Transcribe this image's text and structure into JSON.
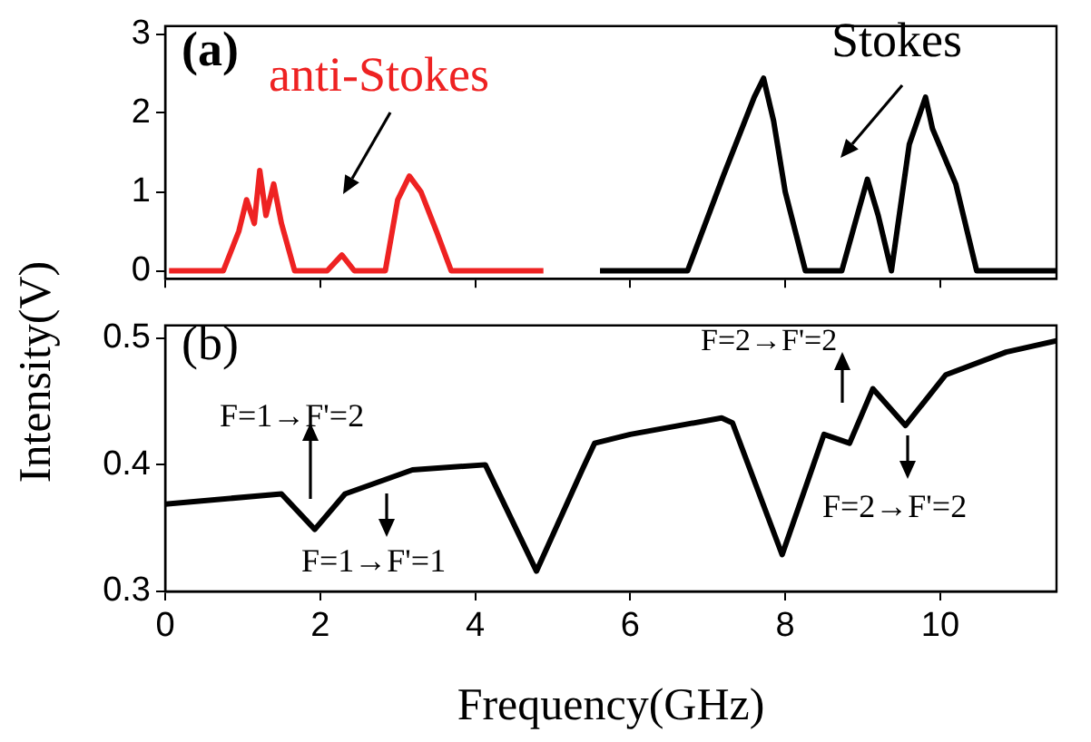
{
  "chart_data": [
    {
      "type": "line",
      "annotations": [
        "(a)"
      ],
      "xlim": [
        0,
        11.5
      ],
      "xticks": [
        0,
        2,
        4,
        6,
        8,
        10
      ],
      "ylim": [
        -0.1,
        3.1
      ],
      "yticks": [
        0,
        1,
        2,
        3
      ],
      "tick_labels": "y",
      "marker": "none",
      "line_style": "solid",
      "grid": false,
      "legend": false,
      "series": [
        {
          "name": "anti-Stokes",
          "color": "#ee2222",
          "x": [
            0.05,
            0.75,
            0.95,
            1.05,
            1.15,
            1.22,
            1.3,
            1.4,
            1.5,
            1.67,
            2.09,
            2.28,
            2.44,
            2.84,
            3.0,
            3.15,
            3.3,
            3.5,
            3.69,
            4.88
          ],
          "values": [
            0,
            0,
            0.5,
            0.9,
            0.6,
            1.27,
            0.7,
            1.1,
            0.6,
            0,
            0,
            0.2,
            0,
            0,
            0.9,
            1.2,
            1.0,
            0.5,
            0,
            0
          ]
        },
        {
          "name": "Stokes",
          "color": "#000000",
          "x": [
            5.61,
            6.74,
            7.2,
            7.6,
            7.72,
            7.85,
            8.0,
            8.26,
            8.73,
            8.9,
            9.06,
            9.2,
            9.37,
            9.6,
            9.81,
            9.9,
            10.2,
            10.47,
            11.5
          ],
          "values": [
            0,
            0,
            1.2,
            2.2,
            2.44,
            1.9,
            1.0,
            0,
            0,
            0.6,
            1.16,
            0.7,
            0,
            1.6,
            2.2,
            1.8,
            1.1,
            0,
            0
          ]
        }
      ]
    },
    {
      "type": "line",
      "xlabel": "Frequency(GHz)",
      "ylabel": "Intensity(V)",
      "annotations": [
        "(b)",
        "F=1→F'=2",
        "F=1→F'=1",
        "F=2→F'=2",
        "F=2→F'=2"
      ],
      "xlim": [
        0,
        11.5
      ],
      "xticks": [
        0,
        2,
        4,
        6,
        8,
        10
      ],
      "ylim": [
        0.3,
        0.51
      ],
      "yticks": [
        0.3,
        0.4,
        0.5
      ],
      "marker": "none",
      "line_style": "solid",
      "grid": false,
      "legend": false,
      "series": [
        {
          "color": "#000000",
          "x": [
            0,
            1.5,
            1.93,
            2.32,
            3.19,
            4.13,
            4.79,
            5.38,
            5.54,
            6.0,
            7.18,
            7.32,
            7.96,
            8.5,
            8.83,
            9.13,
            9.55,
            10.07,
            10.85,
            11.5
          ],
          "values": [
            0.369,
            0.377,
            0.349,
            0.377,
            0.396,
            0.4,
            0.316,
            0.396,
            0.417,
            0.424,
            0.437,
            0.433,
            0.329,
            0.424,
            0.417,
            0.46,
            0.431,
            0.471,
            0.489,
            0.498
          ]
        }
      ]
    }
  ]
}
